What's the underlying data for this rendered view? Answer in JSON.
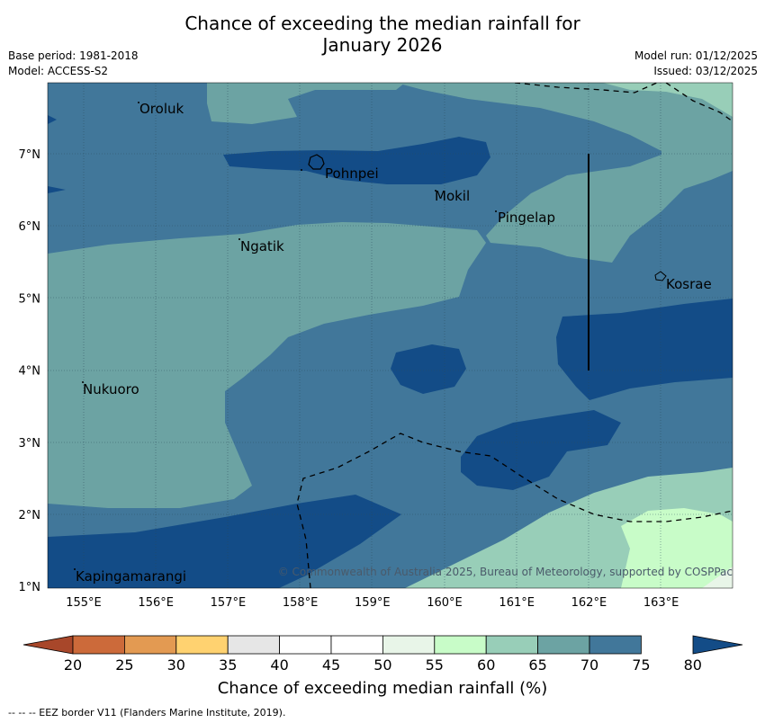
{
  "title": {
    "line1": "Chance of exceeding the median rainfall for",
    "line2": "January 2026"
  },
  "meta": {
    "base_period": "Base period: 1981-2018",
    "model": "Model: ACCESS-S2",
    "model_run": "Model run: 01/12/2025",
    "issued": "Issued: 03/12/2025"
  },
  "axes": {
    "lon_labels": [
      "155°E",
      "156°E",
      "157°E",
      "158°E",
      "159°E",
      "160°E",
      "161°E",
      "162°E",
      "163°E"
    ],
    "lat_labels": [
      "7°N",
      "6°N",
      "5°N",
      "4°N",
      "3°N",
      "2°N",
      "1°N"
    ]
  },
  "places": {
    "oroluk": "Oroluk",
    "pohnpei": "Pohnpei",
    "mokil": "Mokil",
    "pingelap": "Pingelap",
    "ngatik": "Ngatik",
    "kosrae": "Kosrae",
    "nukuoro": "Nukuoro",
    "kapingamarangi": "Kapingamarangi"
  },
  "copyright": "© Commonwealth of Australia 2025, Bureau of Meteorology, supported by COSPPac",
  "colorbar": {
    "title": "Chance of exceeding median rainfall (%)",
    "ticks": [
      "20",
      "25",
      "30",
      "35",
      "40",
      "45",
      "50",
      "55",
      "60",
      "65",
      "70",
      "75",
      "80"
    ],
    "colors": [
      "#a8472a",
      "#cc6a3a",
      "#e39a52",
      "#ffd270",
      "#e6e6e6",
      "#ffffff",
      "#ffffff",
      "#e8f5e8",
      "#c8fcc8",
      "#98ceb8",
      "#6ca3a3",
      "#41779a",
      "#134c87"
    ],
    "low_color": "#a8472a",
    "high_color": "#134c87"
  },
  "footer": "--  --  -- EEZ border V11 (Flanders Marine Institute, 2019)."
}
